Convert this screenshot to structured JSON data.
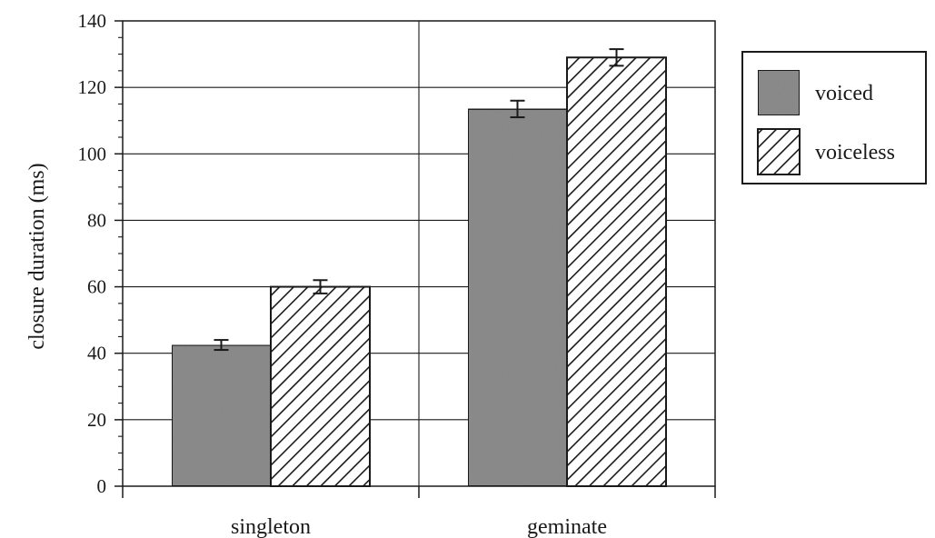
{
  "chart_data": {
    "type": "bar",
    "title": "",
    "xlabel": "",
    "ylabel": "closure duration (ms)",
    "ylim": [
      0,
      140
    ],
    "yticks": [
      0,
      20,
      40,
      60,
      80,
      100,
      120,
      140
    ],
    "categories": [
      "singleton",
      "geminate"
    ],
    "series": [
      {
        "name": "voiced",
        "values": [
          42.5,
          113.5
        ],
        "errors": [
          1.5,
          2.5
        ],
        "fill": "#8c8c8c",
        "pattern": "solid"
      },
      {
        "name": "voiceless",
        "values": [
          60,
          129
        ],
        "errors": [
          2,
          2.5
        ],
        "fill": "#ffffff",
        "pattern": "diagonal-hatch"
      }
    ],
    "grid": true,
    "legend_position": "top-right"
  }
}
